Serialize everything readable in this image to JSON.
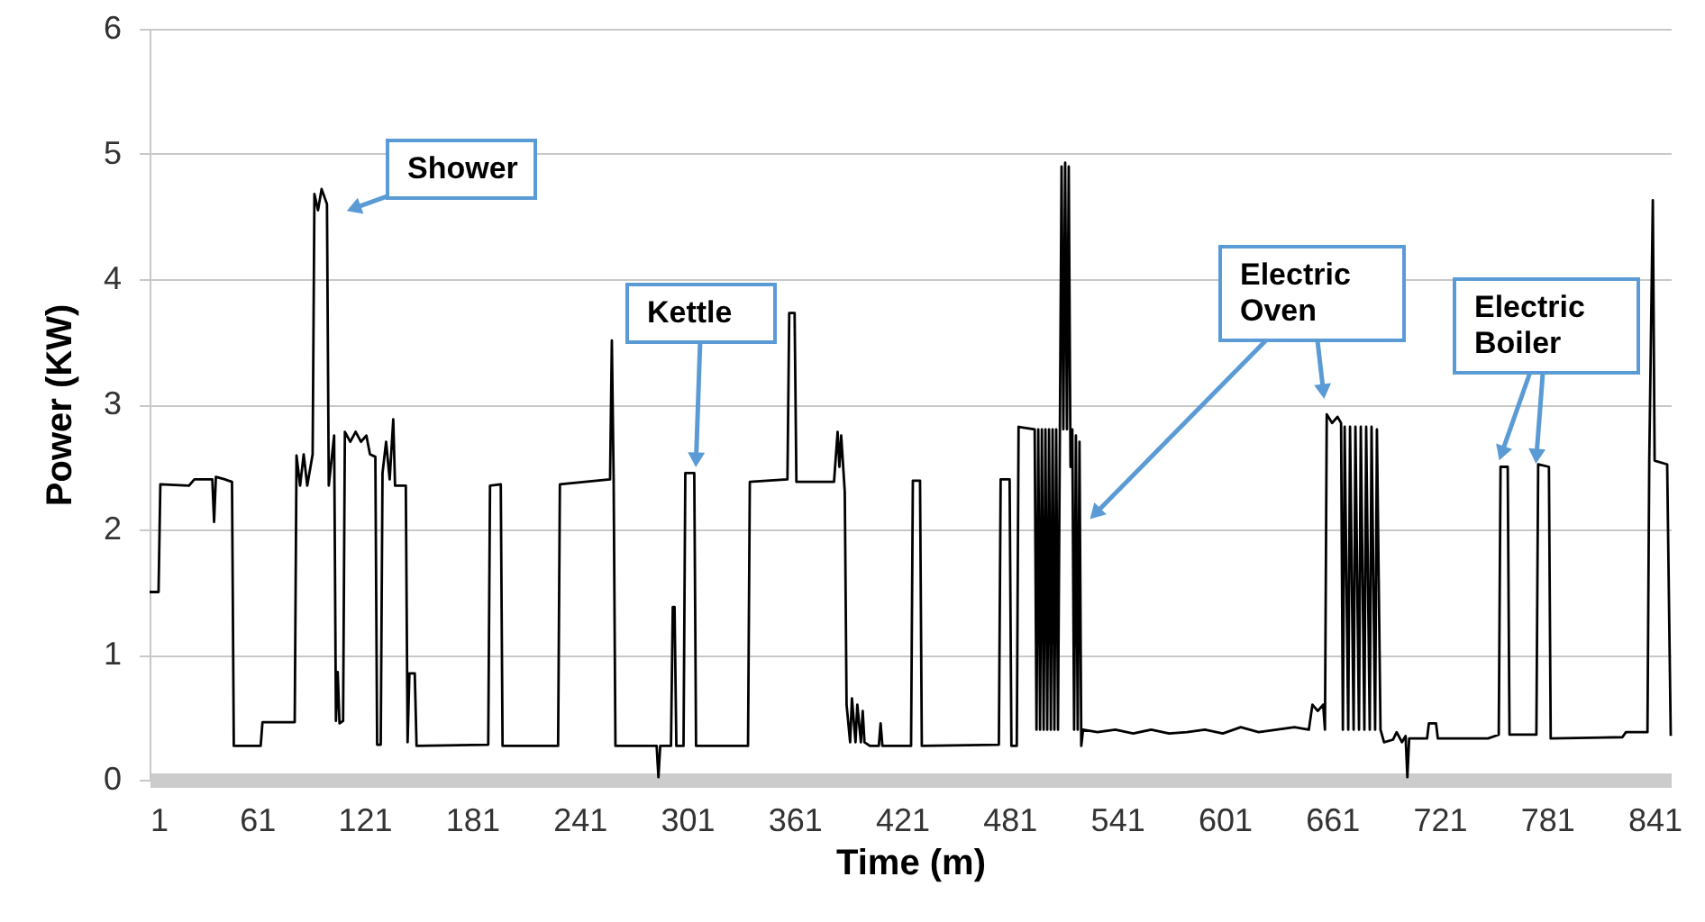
{
  "chart_data": {
    "type": "line",
    "xlabel": "Time (m)",
    "ylabel": "Power (KW)",
    "color": "#000000",
    "xlim": [
      1,
      850
    ],
    "ylim": [
      0,
      6
    ],
    "xticks": [
      1,
      61,
      121,
      181,
      241,
      301,
      361,
      421,
      481,
      541,
      601,
      661,
      721,
      781,
      841
    ],
    "yticks": [
      0,
      1,
      2,
      3,
      4,
      5,
      6
    ],
    "grid": "y",
    "x": [
      1,
      6,
      7,
      23,
      26,
      36,
      37,
      38,
      43,
      47,
      48,
      63,
      64,
      82,
      83,
      85,
      87,
      89,
      92,
      93,
      95,
      97,
      100,
      101,
      104,
      105,
      106,
      107,
      109,
      110,
      113,
      116,
      119,
      122,
      124,
      127,
      128,
      130,
      131,
      133,
      135,
      137,
      138,
      144,
      145,
      146,
      149,
      150,
      190,
      191,
      197,
      198,
      229,
      230,
      258,
      259,
      260,
      261,
      284,
      285,
      286,
      292,
      293,
      294,
      295,
      299,
      300,
      305,
      306,
      335,
      336,
      357,
      358,
      361,
      362,
      383,
      385,
      386,
      387,
      389,
      390,
      392,
      393,
      395,
      396,
      398,
      399,
      400,
      403,
      408,
      409,
      410,
      426,
      427,
      431,
      432,
      475,
      476,
      481,
      482,
      485,
      486,
      495,
      496,
      497,
      498,
      499,
      500,
      501,
      502,
      503,
      504,
      505,
      506,
      507,
      508,
      510,
      511,
      512,
      513,
      514,
      515,
      516,
      517,
      518,
      519,
      520,
      521,
      522,
      530,
      540,
      550,
      560,
      570,
      580,
      590,
      600,
      610,
      620,
      630,
      640,
      648,
      650,
      653,
      656,
      657,
      658,
      661,
      664,
      666,
      667,
      668,
      670,
      671,
      673,
      674,
      676,
      677,
      679,
      680,
      682,
      683,
      685,
      686,
      688,
      690,
      695,
      697,
      700,
      702,
      703,
      704,
      714,
      715,
      719,
      720,
      748,
      754,
      755,
      759,
      760,
      775,
      776,
      782,
      783,
      823,
      825,
      837,
      838,
      840,
      841,
      848,
      850
    ],
    "values": [
      1.5,
      1.5,
      2.36,
      2.35,
      2.4,
      2.4,
      2.06,
      2.42,
      2.4,
      2.38,
      0.27,
      0.27,
      0.46,
      0.46,
      2.59,
      2.35,
      2.6,
      2.35,
      2.6,
      4.68,
      4.55,
      4.72,
      4.6,
      2.35,
      2.75,
      0.47,
      0.86,
      0.45,
      0.47,
      2.78,
      2.7,
      2.78,
      2.7,
      2.75,
      2.6,
      2.58,
      0.28,
      0.28,
      2.45,
      2.7,
      2.4,
      2.88,
      2.35,
      2.35,
      0.3,
      0.85,
      0.85,
      0.27,
      0.28,
      2.35,
      2.36,
      0.27,
      0.27,
      2.36,
      2.4,
      3.51,
      2.4,
      0.27,
      0.27,
      0.02,
      0.27,
      0.27,
      1.38,
      1.38,
      0.27,
      0.27,
      2.45,
      2.45,
      0.27,
      0.27,
      2.38,
      2.4,
      3.73,
      3.73,
      2.38,
      2.38,
      2.78,
      2.5,
      2.75,
      2.3,
      0.6,
      0.3,
      0.65,
      0.3,
      0.6,
      0.3,
      0.55,
      0.3,
      0.27,
      0.27,
      0.45,
      0.27,
      0.27,
      2.39,
      2.39,
      0.27,
      0.28,
      2.4,
      2.4,
      0.27,
      0.27,
      2.82,
      2.8,
      0.4,
      2.8,
      0.4,
      2.8,
      0.4,
      2.8,
      0.4,
      2.8,
      0.4,
      2.8,
      0.4,
      2.8,
      0.4,
      4.9,
      2.8,
      4.93,
      2.8,
      4.9,
      2.5,
      2.8,
      0.4,
      2.75,
      0.4,
      2.7,
      0.27,
      0.4,
      0.38,
      0.4,
      0.37,
      0.4,
      0.37,
      0.38,
      0.4,
      0.37,
      0.42,
      0.38,
      0.4,
      0.42,
      0.4,
      0.6,
      0.55,
      0.6,
      0.4,
      2.92,
      2.85,
      2.9,
      2.85,
      0.4,
      2.82,
      0.4,
      2.82,
      0.4,
      2.82,
      0.4,
      2.82,
      0.4,
      2.82,
      0.4,
      2.82,
      0.4,
      2.8,
      0.4,
      0.3,
      0.32,
      0.38,
      0.3,
      0.35,
      0.02,
      0.33,
      0.33,
      0.45,
      0.45,
      0.33,
      0.33,
      0.36,
      2.5,
      2.5,
      0.36,
      0.36,
      2.52,
      2.5,
      0.33,
      0.34,
      0.38,
      0.38,
      2.55,
      4.63,
      2.55,
      2.52,
      0.35
    ],
    "annotations": [
      "Shower",
      "Kettle",
      "Electric Oven",
      "Electric Boiler"
    ]
  }
}
